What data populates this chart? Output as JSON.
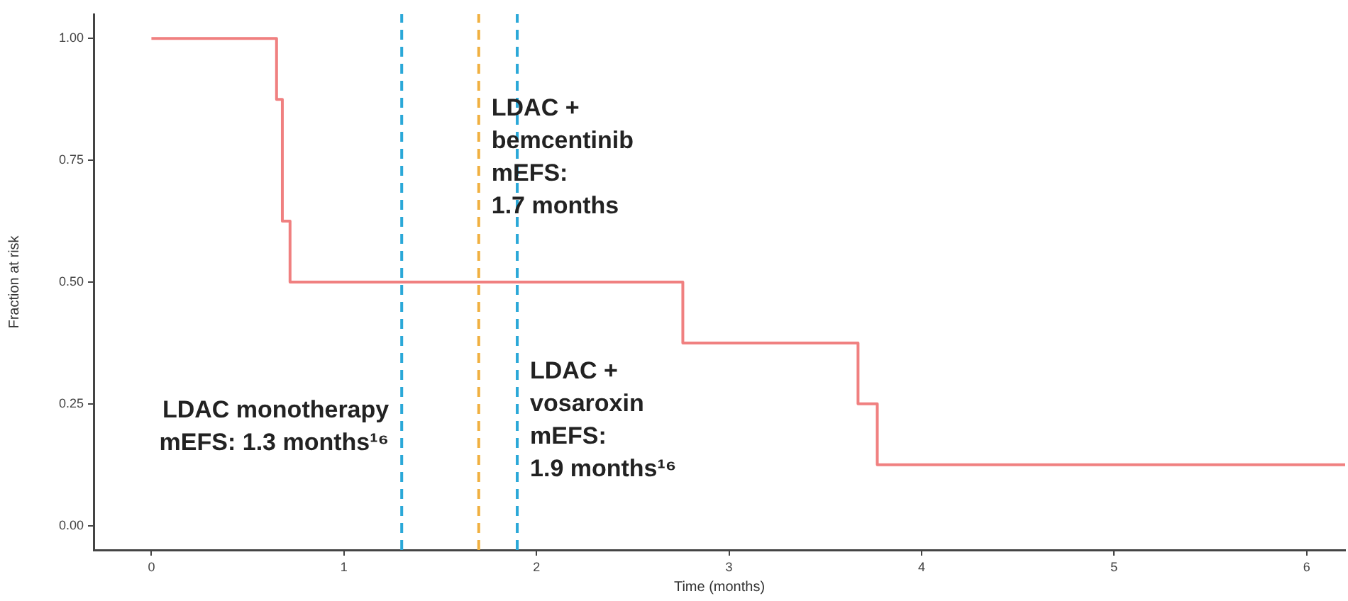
{
  "chart_data": {
    "type": "step",
    "xlabel": "Time (months)",
    "ylabel": "Fraction at risk",
    "x": [
      0,
      0.65,
      0.68,
      0.72,
      2.76,
      3.67,
      3.77,
      6.2
    ],
    "series": [
      {
        "color": "#f08080",
        "values": [
          1,
          0.875,
          0.625,
          0.5,
          0.375,
          0.25,
          0.125,
          0.125
        ]
      }
    ],
    "xlim": [
      -0.3,
      6.2
    ],
    "xticks": [
      0,
      1,
      2,
      3,
      4,
      5,
      6
    ],
    "ylim": [
      -0.05,
      1.05
    ],
    "yticks": [
      {
        "value": 0,
        "label": "0.00"
      },
      {
        "value": 0.25,
        "label": "0.25"
      },
      {
        "value": 0.5,
        "label": "0.50"
      },
      {
        "value": 0.75,
        "label": "0.75"
      },
      {
        "value": 1,
        "label": "1.00"
      }
    ],
    "grid": false,
    "legend": false,
    "marker": "none",
    "ref_lines": [
      {
        "axis": "x",
        "value": 1.3,
        "color": "#2aa8d8",
        "line_style": "dashed"
      },
      {
        "axis": "x",
        "value": 1.7,
        "color": "#f0b040",
        "line_style": "dashed"
      },
      {
        "axis": "x",
        "value": 1.9,
        "color": "#2aa8d8",
        "line_style": "dashed"
      }
    ],
    "annotations": [
      {
        "text": "LDAC monotherapy\nmEFS: 1.3 months¹⁶",
        "x": 1.3,
        "y": 0.26
      },
      {
        "text": "LDAC +\nbemcentinib\nmEFS:\n1.7 months",
        "x": 1.7,
        "y": 0.88
      },
      {
        "text": "LDAC +\nvosaroxin\nmEFS:\n1.9 months¹⁶",
        "x": 1.9,
        "y": 0.34
      }
    ]
  }
}
